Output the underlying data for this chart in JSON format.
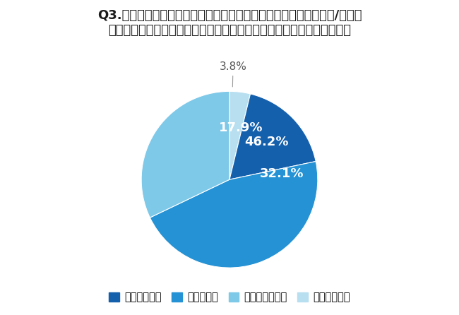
{
  "title_line1": "Q3.あなたは、自治体内の課題解決や地域住民向けサービスの企画/開発に",
  "title_line2": "際して、少ない選択肢や解決案からの検討になっていると感じますか。",
  "slices": [
    3.8,
    17.9,
    46.2,
    32.1
  ],
  "labels_order": [
    "全く感じない",
    "非常に感じる",
    "少し感じる",
    "あまり感じない"
  ],
  "legend_labels": [
    "非常に感じる",
    "少し感じる",
    "あまり感じない",
    "全く感じない"
  ],
  "colors": [
    "#b8dff0",
    "#1560ac",
    "#2492d4",
    "#7ec8e8"
  ],
  "legend_colors": [
    "#1560ac",
    "#2492d4",
    "#7ec8e8",
    "#b8dff0"
  ],
  "pct_labels": [
    "3.8%",
    "17.9%",
    "46.2%",
    "32.1%"
  ],
  "background_color": "#ffffff",
  "title_fontsize": 13.0,
  "legend_fontsize": 10.5,
  "pct_fontsize": 13
}
